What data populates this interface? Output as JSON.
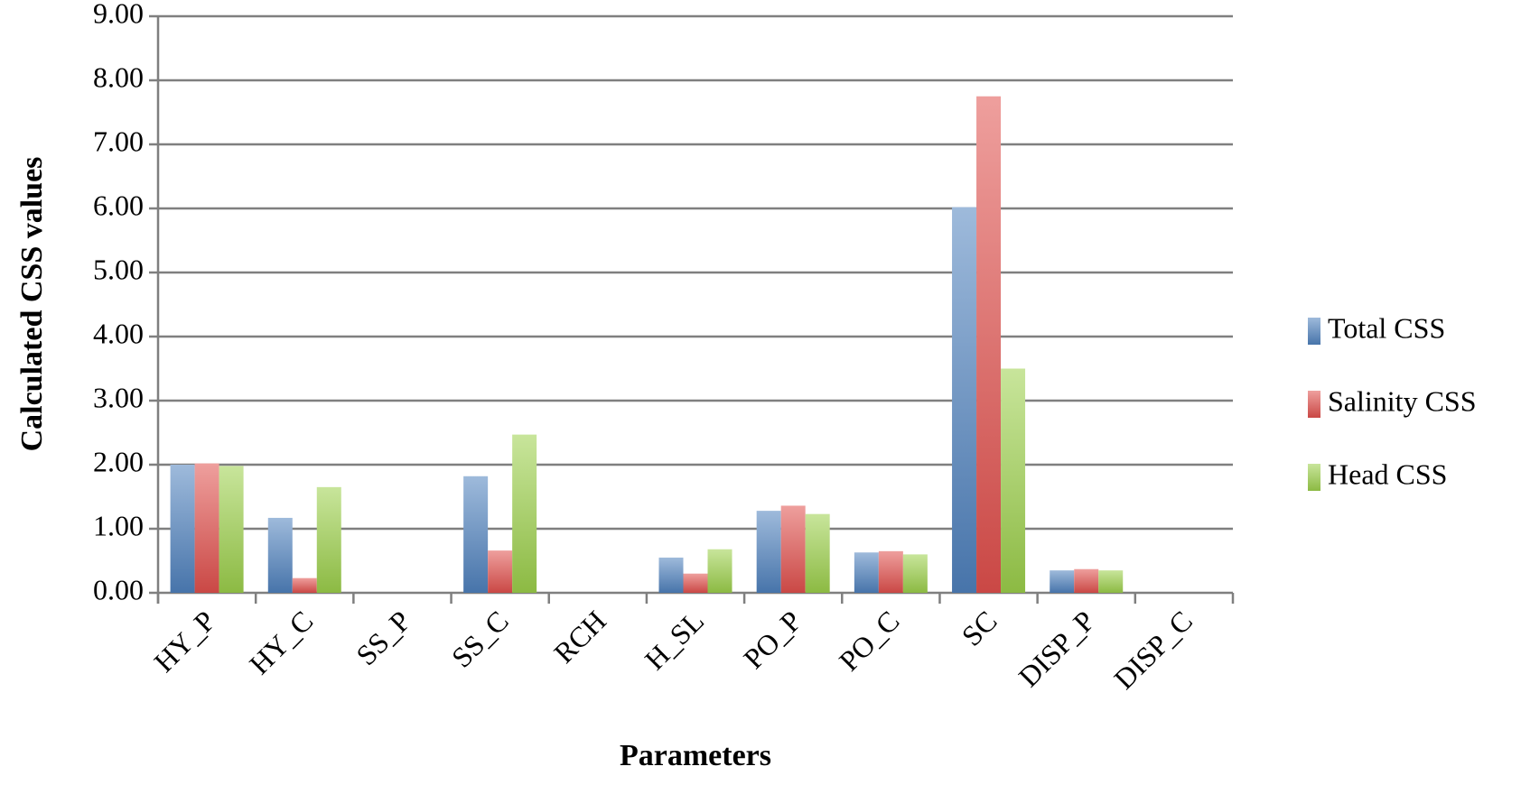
{
  "chart_data": {
    "type": "bar",
    "x_label": "Parameters",
    "y_label": "Calculated CSS values",
    "categories": [
      "HY_P",
      "HY_C",
      "SS_P",
      "SS_C",
      "RCH",
      "H_SL",
      "PO_P",
      "PO_C",
      "SC",
      "DISP_P",
      "DISP_C"
    ],
    "series": [
      {
        "name": "Total CSS",
        "color": "#4f81bd",
        "values": [
          2.0,
          1.17,
          0,
          1.82,
          0,
          0.55,
          1.28,
          0.63,
          6.02,
          0.35,
          0
        ]
      },
      {
        "name": "Salinity CSS",
        "color": "#e0504d",
        "values": [
          2.02,
          0.23,
          0,
          0.66,
          0,
          0.3,
          1.36,
          0.65,
          7.75,
          0.37,
          0
        ]
      },
      {
        "name": "Head CSS",
        "color": "#9bcf4a",
        "values": [
          1.98,
          1.65,
          0,
          2.47,
          0,
          0.68,
          1.23,
          0.6,
          3.5,
          0.35,
          0
        ]
      }
    ],
    "ylim": [
      0,
      9
    ],
    "yticks": [
      {
        "value": 0,
        "label": "0.00"
      },
      {
        "value": 1,
        "label": "1.00"
      },
      {
        "value": 2,
        "label": "2.00"
      },
      {
        "value": 3,
        "label": "3.00"
      },
      {
        "value": 4,
        "label": "4.00"
      },
      {
        "value": 5,
        "label": "5.00"
      },
      {
        "value": 6,
        "label": "6.00"
      },
      {
        "value": 7,
        "label": "7.00"
      },
      {
        "value": 8,
        "label": "8.00"
      },
      {
        "value": 9,
        "label": "9.00"
      }
    ],
    "grid": true,
    "legend": "right"
  }
}
